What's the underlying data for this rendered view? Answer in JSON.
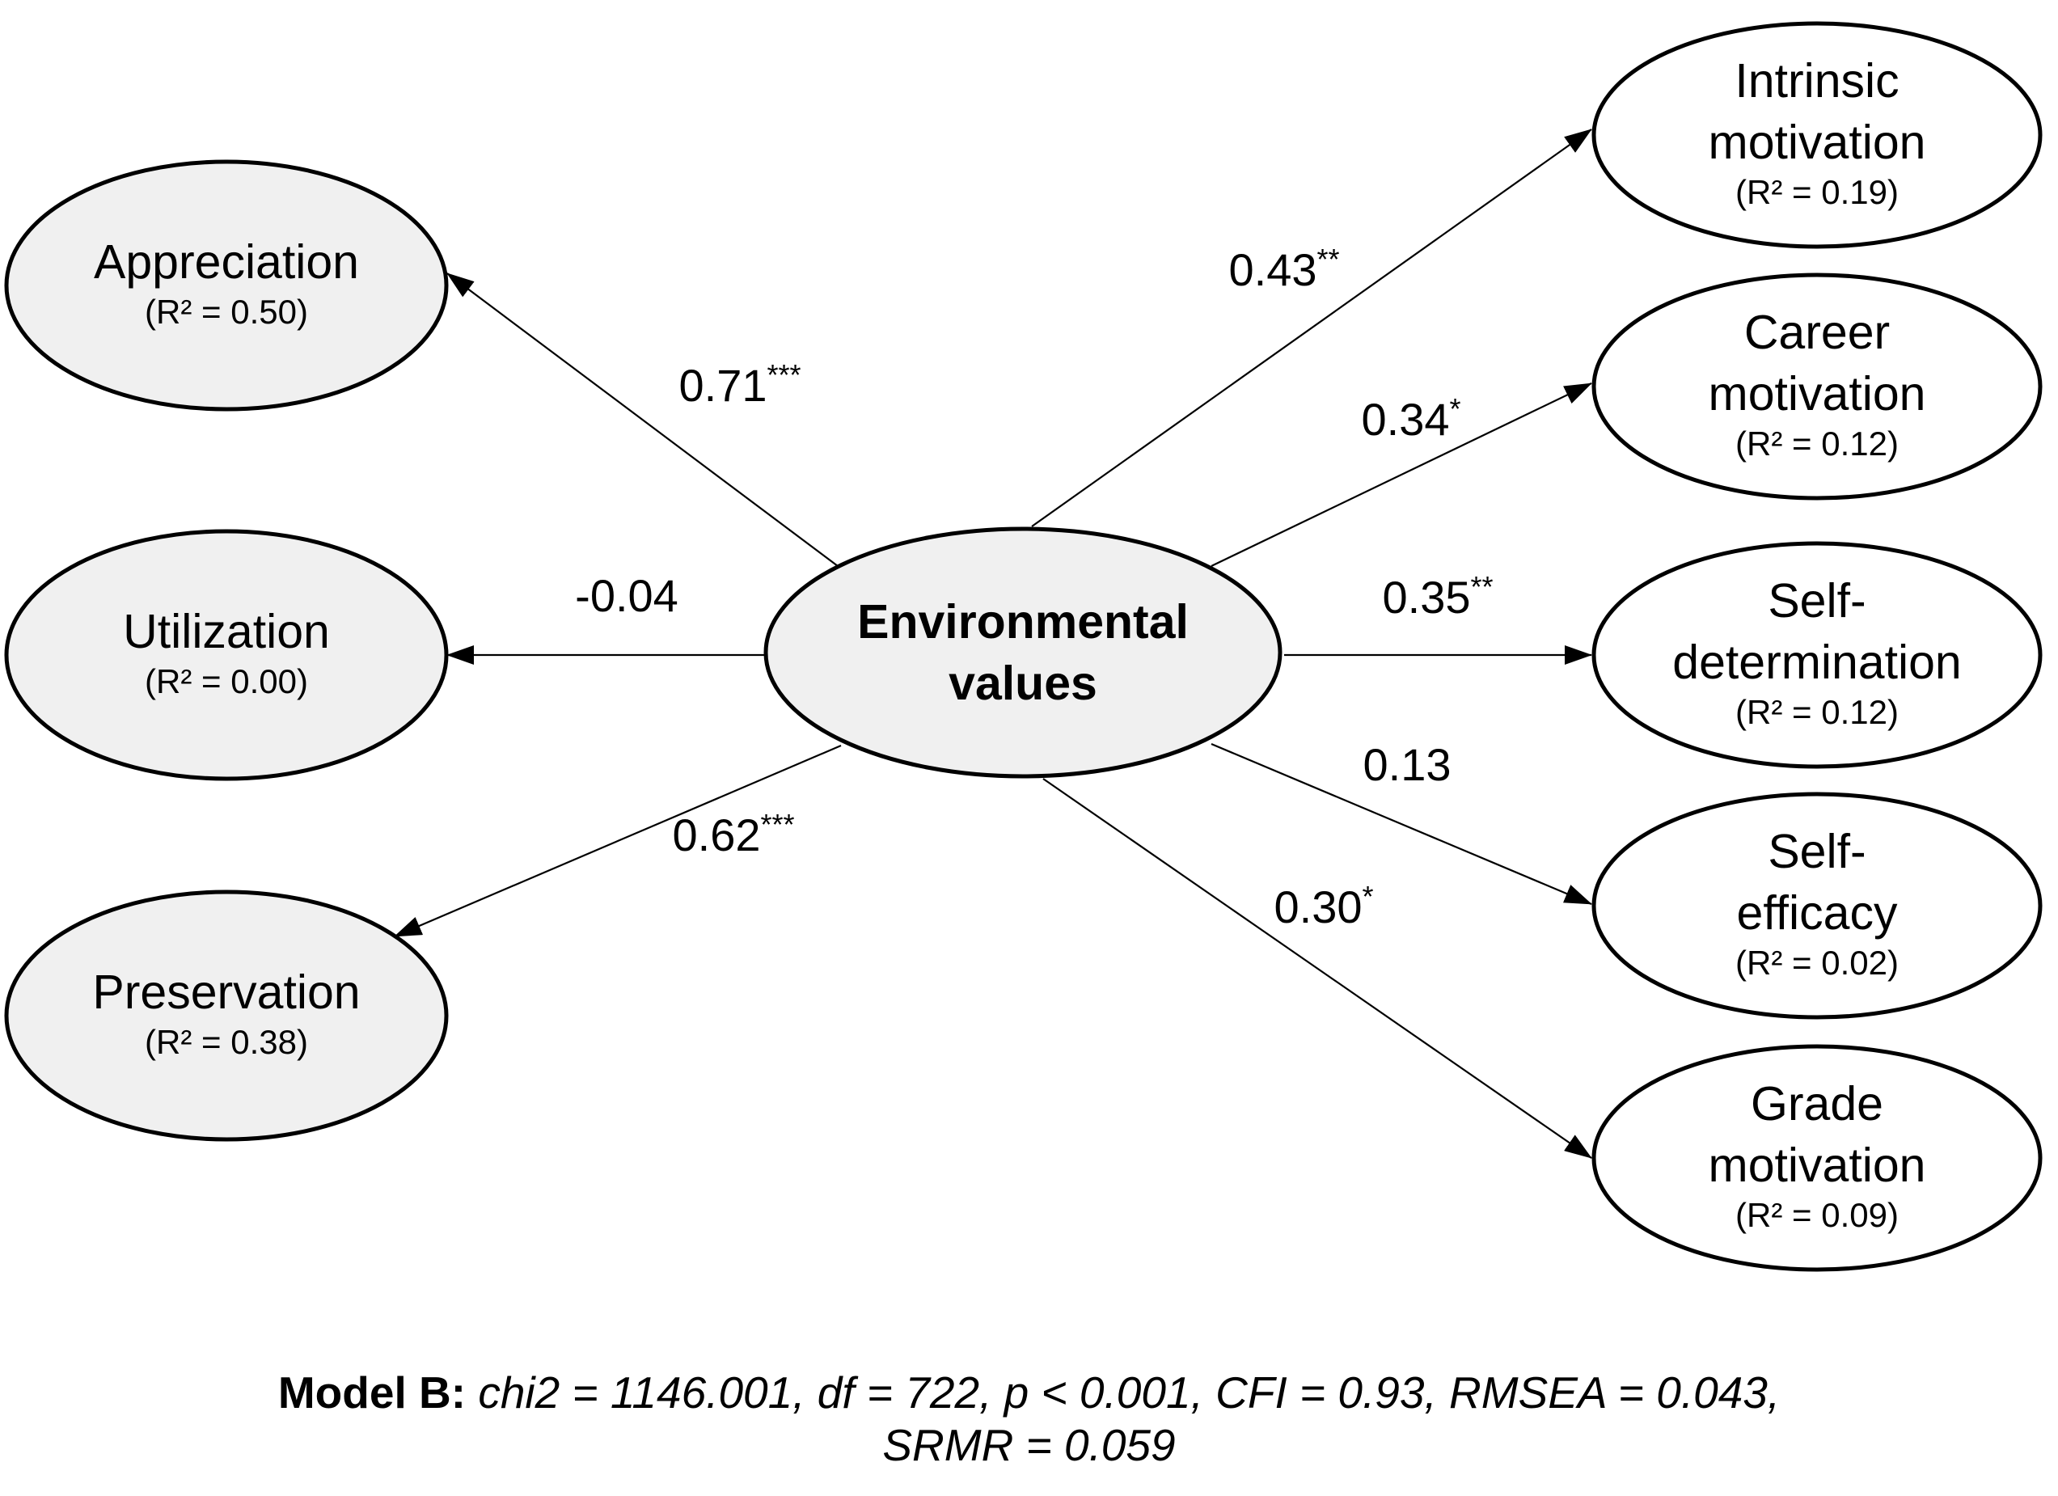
{
  "center": {
    "id": "env",
    "lines": [
      "Environmental",
      "values"
    ]
  },
  "nodes": [
    {
      "id": "appreciation",
      "lines": [
        "Appreciation"
      ],
      "r2": "(R² = 0.50)",
      "shaded": true
    },
    {
      "id": "utilization",
      "lines": [
        "Utilization"
      ],
      "r2": "(R² = 0.00)",
      "shaded": true
    },
    {
      "id": "preservation",
      "lines": [
        "Preservation"
      ],
      "r2": "(R² = 0.38)",
      "shaded": true
    },
    {
      "id": "intrinsic",
      "lines": [
        "Intrinsic",
        "motivation"
      ],
      "r2": "(R² = 0.19)",
      "shaded": false
    },
    {
      "id": "career",
      "lines": [
        "Career",
        "motivation"
      ],
      "r2": "(R² = 0.12)",
      "shaded": false
    },
    {
      "id": "selfdet",
      "lines": [
        "Self-",
        "determination"
      ],
      "r2": "(R² = 0.12)",
      "shaded": false
    },
    {
      "id": "selfeff",
      "lines": [
        "Self-",
        "efficacy"
      ],
      "r2": "(R² = 0.02)",
      "shaded": false
    },
    {
      "id": "grade",
      "lines": [
        "Grade",
        "motivation"
      ],
      "r2": "(R² = 0.09)",
      "shaded": false
    }
  ],
  "edges": [
    {
      "to": "appreciation",
      "coef": "0.71",
      "sig": "***"
    },
    {
      "to": "utilization",
      "coef": "-0.04",
      "sig": ""
    },
    {
      "to": "preservation",
      "coef": "0.62",
      "sig": "***"
    },
    {
      "to": "intrinsic",
      "coef": "0.43",
      "sig": "**"
    },
    {
      "to": "career",
      "coef": "0.34",
      "sig": "*"
    },
    {
      "to": "selfdet",
      "coef": "0.35",
      "sig": "**"
    },
    {
      "to": "selfeff",
      "coef": "0.13",
      "sig": ""
    },
    {
      "to": "grade",
      "coef": "0.30",
      "sig": "*"
    }
  ],
  "colors": {
    "shaded_fill": "#f0f0f0",
    "plain_fill": "#ffffff",
    "line": "#000000"
  },
  "caption": {
    "label": "Model B:",
    "line1": "chi2 = 1146.001, df = 722, p < 0.001, CFI = 0.93, RMSEA = 0.043,",
    "line2": "SRMR = 0.059"
  }
}
